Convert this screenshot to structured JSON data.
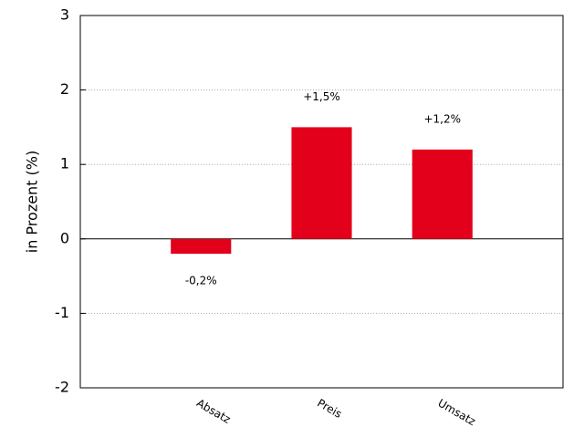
{
  "chart_data": {
    "type": "bar",
    "y_label": "in Prozent (%)",
    "categories": [
      "Absatz",
      "Preis",
      "Umsatz"
    ],
    "values": [
      -0.2,
      1.5,
      1.2
    ],
    "value_labels": [
      "-0,2%",
      "+1,5%",
      "+1,2%"
    ],
    "color": "#e2001a",
    "ylim": [
      -2,
      3
    ],
    "yticks": [
      -2,
      -1,
      0,
      1,
      2,
      3
    ],
    "grid": true
  }
}
